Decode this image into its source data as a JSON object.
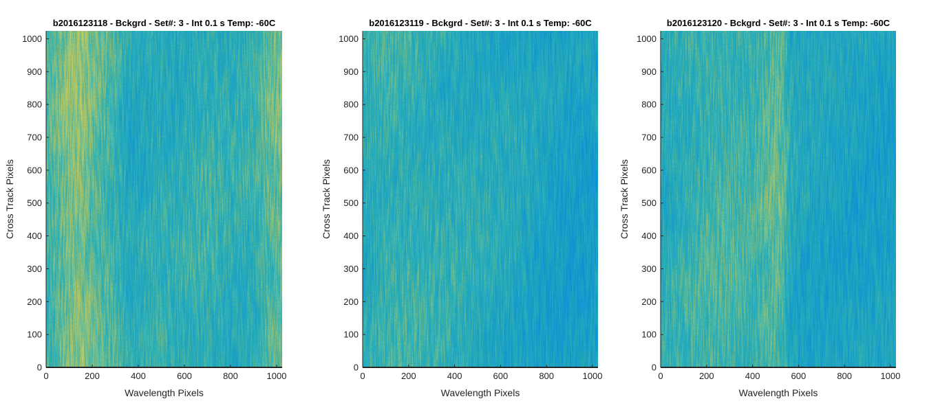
{
  "chart_data": [
    {
      "type": "heatmap",
      "title": "b2016123118 - Bckgrd - Set#: 3 - Int 0.1 s Temp: -60C",
      "xlabel": "Wavelength Pixels",
      "ylabel": "Cross Track Pixels",
      "xlim": [
        0,
        1024
      ],
      "ylim": [
        0,
        1024
      ],
      "xticks": [
        0,
        200,
        400,
        600,
        800,
        1000
      ],
      "yticks": [
        0,
        100,
        200,
        300,
        400,
        500,
        600,
        700,
        800,
        900,
        1000
      ],
      "grid": false,
      "colormap": "parula",
      "colors": {
        "low": "#0a8fd6",
        "mid": "#2bb0b5",
        "high": "#c4c85a"
      },
      "column_profile": {
        "x": [
          0,
          100,
          150,
          200,
          250,
          300,
          350,
          400,
          450,
          500,
          550,
          600,
          700,
          800,
          900,
          950,
          1024
        ],
        "intensity": [
          0.55,
          0.78,
          0.82,
          0.7,
          0.62,
          0.55,
          0.4,
          0.4,
          0.44,
          0.46,
          0.42,
          0.45,
          0.5,
          0.44,
          0.48,
          0.62,
          0.72
        ]
      }
    },
    {
      "type": "heatmap",
      "title": "b2016123119 - Bckgrd - Set#: 3 - Int 0.1 s Temp: -60C",
      "xlabel": "Wavelength Pixels",
      "ylabel": "Cross Track Pixels",
      "xlim": [
        0,
        1024
      ],
      "ylim": [
        0,
        1024
      ],
      "xticks": [
        0,
        200,
        400,
        600,
        800,
        1000
      ],
      "yticks": [
        0,
        100,
        200,
        300,
        400,
        500,
        600,
        700,
        800,
        900,
        1000
      ],
      "grid": false,
      "colormap": "parula",
      "colors": {
        "low": "#0a8fd6",
        "mid": "#2bb0b5",
        "high": "#c4c85a"
      },
      "column_profile": {
        "x": [
          0,
          100,
          200,
          300,
          400,
          500,
          600,
          700,
          800,
          900,
          1024
        ],
        "intensity": [
          0.42,
          0.52,
          0.5,
          0.46,
          0.44,
          0.4,
          0.38,
          0.34,
          0.28,
          0.24,
          0.26
        ]
      }
    },
    {
      "type": "heatmap",
      "title": "b2016123120 - Bckgrd - Set#: 3 - Int 0.1 s Temp: -60C",
      "xlabel": "Wavelength Pixels",
      "ylabel": "Cross Track Pixels",
      "xlim": [
        0,
        1024
      ],
      "ylim": [
        0,
        1024
      ],
      "xticks": [
        0,
        200,
        400,
        600,
        800,
        1000
      ],
      "yticks": [
        0,
        100,
        200,
        300,
        400,
        500,
        600,
        700,
        800,
        900,
        1000
      ],
      "grid": false,
      "colormap": "parula",
      "colors": {
        "low": "#0a8fd6",
        "mid": "#2bb0b5",
        "high": "#c4c85a"
      },
      "column_profile": {
        "x": [
          0,
          100,
          200,
          300,
          400,
          450,
          500,
          530,
          560,
          600,
          700,
          800,
          900,
          1024
        ],
        "intensity": [
          0.42,
          0.48,
          0.55,
          0.56,
          0.52,
          0.6,
          0.66,
          0.62,
          0.4,
          0.34,
          0.32,
          0.3,
          0.28,
          0.28
        ]
      }
    }
  ]
}
